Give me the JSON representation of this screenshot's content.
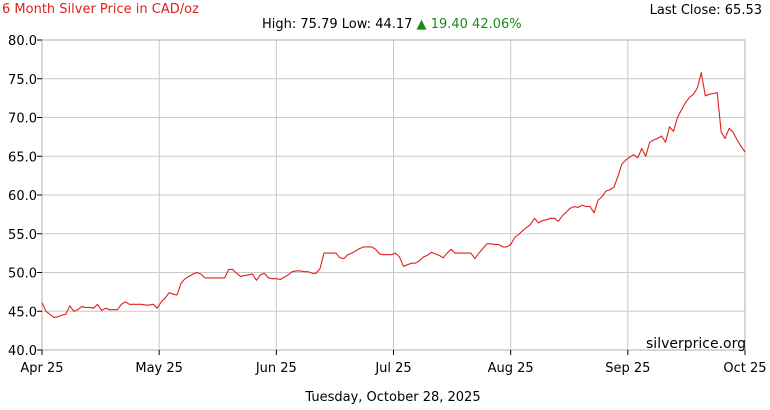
{
  "header": {
    "title": "6 Month Silver Price in CAD/oz",
    "last_close_label": "Last Close:",
    "last_close_value": "65.53",
    "high_label": "High:",
    "high_value": "75.79",
    "low_label": "Low:",
    "low_value": "44.17",
    "change_arrow": "▲",
    "change_value": "19.40",
    "change_percent": "42.06%"
  },
  "footer": {
    "date": "Tuesday, October 28, 2025",
    "watermark": "silverprice.org"
  },
  "colors": {
    "line": "#e0201b",
    "up": "#1a8c1a",
    "grid": "#c8c8c8"
  },
  "chart_data": {
    "type": "line",
    "title": "6 Month Silver Price in CAD/oz",
    "xlabel": "",
    "ylabel": "",
    "ylim": [
      40,
      80
    ],
    "y_ticks": [
      "40.0",
      "45.0",
      "50.0",
      "55.0",
      "60.0",
      "65.0",
      "70.0",
      "75.0",
      "80.0"
    ],
    "x_ticks": [
      "Apr 25",
      "May 25",
      "Jun 25",
      "Jul 25",
      "Aug 25",
      "Sep 25",
      "Oct 25"
    ],
    "grid": true,
    "series": [
      {
        "values": [
          46.1,
          45.0,
          44.6,
          44.2,
          44.3,
          44.5,
          44.6,
          45.7,
          45.0,
          45.2,
          45.6,
          45.5,
          45.5,
          45.4,
          45.9,
          45.1,
          45.4,
          45.2,
          45.2,
          45.2,
          45.9,
          46.2,
          45.9,
          45.9,
          45.9,
          45.9,
          45.8,
          45.8,
          45.9,
          45.4,
          46.2,
          46.7,
          47.4,
          47.2,
          47.1,
          48.6,
          49.2,
          49.5,
          49.8,
          50.0,
          49.8,
          49.3,
          49.3,
          49.3,
          49.3,
          49.3,
          49.3,
          50.4,
          50.4,
          49.9,
          49.5,
          49.6,
          49.7,
          49.8,
          49.0,
          49.7,
          49.9,
          49.3,
          49.2,
          49.2,
          49.1,
          49.4,
          49.7,
          50.1,
          50.2,
          50.2,
          50.1,
          50.1,
          49.9,
          49.9,
          50.5,
          52.5,
          52.5,
          52.5,
          52.5,
          51.9,
          51.8,
          52.3,
          52.5,
          52.8,
          53.1,
          53.3,
          53.3,
          53.3,
          53.0,
          52.4,
          52.3,
          52.3,
          52.3,
          52.5,
          52.0,
          50.8,
          51.0,
          51.2,
          51.2,
          51.5,
          52.0,
          52.2,
          52.6,
          52.4,
          52.2,
          51.9,
          52.5,
          53.0,
          52.5,
          52.5,
          52.5,
          52.5,
          52.5,
          51.8,
          52.5,
          53.1,
          53.7,
          53.7,
          53.6,
          53.6,
          53.3,
          53.3,
          53.6,
          54.5,
          54.9,
          55.4,
          55.8,
          56.2,
          57.0,
          56.4,
          56.7,
          56.8,
          57.0,
          57.0,
          56.6,
          57.3,
          57.8,
          58.3,
          58.5,
          58.4,
          58.7,
          58.5,
          58.5,
          57.7,
          59.3,
          59.8,
          60.5,
          60.7,
          61.0,
          62.4,
          64.0,
          64.5,
          64.9,
          65.2,
          64.8,
          66.0,
          65.0,
          66.8,
          67.1,
          67.3,
          67.6,
          66.8,
          68.8,
          68.2,
          70.0,
          71.0,
          71.9,
          72.6,
          73.0,
          73.8,
          75.79,
          72.8,
          73.0,
          73.1,
          73.2,
          68.1,
          67.3,
          68.6,
          68.1,
          67.1,
          66.3,
          65.53
        ]
      }
    ]
  }
}
